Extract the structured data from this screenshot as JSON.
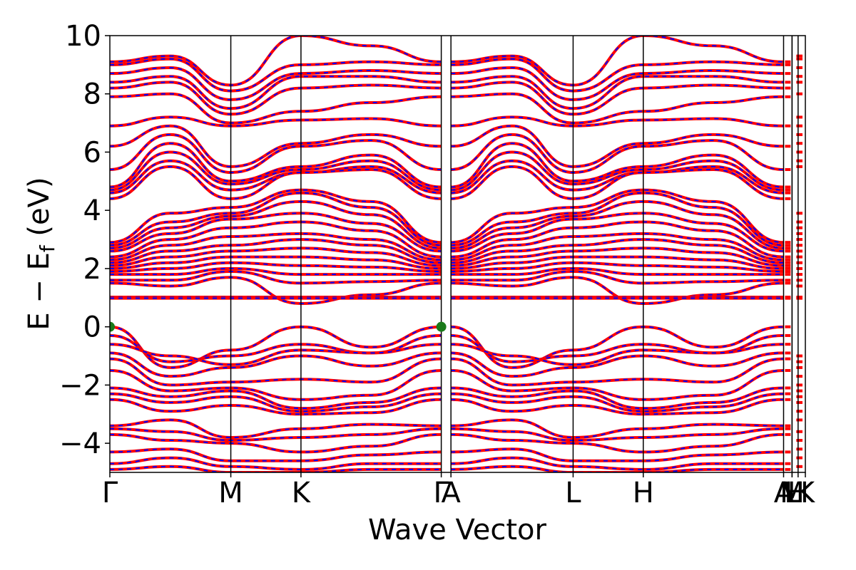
{
  "chart_data": {
    "type": "line",
    "title": "",
    "xlabel": "Wave Vector",
    "ylabel": "E − E",
    "ylabel_subscript": "f",
    "ylabel_unit": " (eV)",
    "ylim": [
      -5,
      10
    ],
    "yticks": [
      {
        "value": -4,
        "label": "−4"
      },
      {
        "value": -2,
        "label": "−2"
      },
      {
        "value": 0,
        "label": "0"
      },
      {
        "value": 2,
        "label": "2"
      },
      {
        "value": 4,
        "label": "4"
      },
      {
        "value": 6,
        "label": "6"
      },
      {
        "value": 8,
        "label": "8"
      },
      {
        "value": 10,
        "label": "10"
      }
    ],
    "xlim": [
      0,
      5.75
    ],
    "high_symmetry_points": [
      {
        "label": "Γ",
        "x": 0.0
      },
      {
        "label": "M",
        "x": 1.0
      },
      {
        "label": "K",
        "x": 1.58
      },
      {
        "label": "Γ",
        "x": 2.74
      },
      {
        "label": "A",
        "x": 2.82
      },
      {
        "label": "L",
        "x": 3.83
      },
      {
        "label": "H",
        "x": 4.41
      },
      {
        "label": "A",
        "x": 5.57
      },
      {
        "label": "L",
        "x": 5.64
      },
      {
        "label": "M",
        "x": 5.64
      },
      {
        "label": "H",
        "x": 5.69
      },
      {
        "label": "K",
        "x": 5.75
      }
    ],
    "segments": [
      [
        0.0,
        1.0
      ],
      [
        1.0,
        1.58
      ],
      [
        1.58,
        2.74
      ],
      [
        2.82,
        3.83
      ],
      [
        3.83,
        4.41
      ],
      [
        4.41,
        5.57
      ]
    ],
    "series_colors": {
      "primary": "#ff0000",
      "overlay": "#0000ff"
    },
    "vbm_markers": [
      {
        "x": 0.0,
        "y": 0.0
      },
      {
        "x": 2.74,
        "y": 0.0
      }
    ],
    "marker_color": "#1a7a1a",
    "flat_band_energy": 1.0,
    "bands": [
      {
        "gamma": 9.1,
        "M": 8.3,
        "K": 10.0,
        "center": 9.3
      },
      {
        "gamma": 9.0,
        "M": 8.1,
        "K": 9.0,
        "center": 9.2
      },
      {
        "gamma": 8.7,
        "M": 7.8,
        "K": 8.7,
        "center": 8.9
      },
      {
        "gamma": 8.4,
        "M": 7.5,
        "K": 8.6,
        "center": 8.6
      },
      {
        "gamma": 8.2,
        "M": 7.3,
        "K": 8.2,
        "center": 8.4
      },
      {
        "gamma": 7.9,
        "M": 7.0,
        "K": 7.4,
        "center": 8.0
      },
      {
        "gamma": 6.9,
        "M": 6.9,
        "K": 7.1,
        "center": 7.2
      },
      {
        "gamma": 6.2,
        "M": 5.5,
        "K": 6.3,
        "center": 6.9
      },
      {
        "gamma": 5.4,
        "M": 5.3,
        "K": 6.2,
        "center": 6.6
      },
      {
        "gamma": 4.8,
        "M": 5.0,
        "K": 5.5,
        "center": 6.3
      },
      {
        "gamma": 4.7,
        "M": 4.9,
        "K": 5.4,
        "center": 6.0
      },
      {
        "gamma": 4.6,
        "M": 4.7,
        "K": 5.3,
        "center": 5.7
      },
      {
        "gamma": 4.4,
        "M": 4.4,
        "K": 5.3,
        "center": 5.5
      },
      {
        "gamma": 2.9,
        "M": 4.1,
        "K": 4.7,
        "center": 3.9
      },
      {
        "gamma": 2.8,
        "M": 3.9,
        "K": 4.6,
        "center": 3.6
      },
      {
        "gamma": 2.7,
        "M": 3.8,
        "K": 4.3,
        "center": 3.4
      },
      {
        "gamma": 2.6,
        "M": 3.7,
        "K": 3.9,
        "center": 3.2
      },
      {
        "gamma": 2.4,
        "M": 3.4,
        "K": 3.6,
        "center": 3.0
      },
      {
        "gamma": 2.3,
        "M": 3.1,
        "K": 3.2,
        "center": 2.8
      },
      {
        "gamma": 2.2,
        "M": 2.8,
        "K": 3.0,
        "center": 2.6
      },
      {
        "gamma": 2.1,
        "M": 2.6,
        "K": 2.7,
        "center": 2.4
      },
      {
        "gamma": 2.0,
        "M": 2.4,
        "K": 2.4,
        "center": 2.2
      },
      {
        "gamma": 1.9,
        "M": 2.2,
        "K": 2.1,
        "center": 2.0
      },
      {
        "gamma": 1.8,
        "M": 2.0,
        "K": 1.8,
        "center": 1.8
      },
      {
        "gamma": 1.6,
        "M": 1.9,
        "K": 1.5,
        "center": 1.6
      },
      {
        "gamma": 1.5,
        "M": 1.7,
        "K": 0.8,
        "center": 1.4
      },
      {
        "gamma": 1.02,
        "M": 1.02,
        "K": 1.02,
        "center": 1.02
      },
      {
        "gamma": 0.98,
        "M": 0.98,
        "K": 0.98,
        "center": 0.98
      },
      {
        "gamma": 0.0,
        "M": -0.8,
        "K": 0.0,
        "center": -1.4
      },
      {
        "gamma": -0.3,
        "M": -1.0,
        "K": -0.6,
        "center": -1.2
      },
      {
        "gamma": -0.6,
        "M": -1.3,
        "K": -0.8,
        "center": -1.0
      },
      {
        "gamma": -0.9,
        "M": -1.4,
        "K": -1.0,
        "center": -1.7
      },
      {
        "gamma": -1.1,
        "M": -1.9,
        "K": -1.8,
        "center": -2.0
      },
      {
        "gamma": -1.5,
        "M": -2.1,
        "K": -2.5,
        "center": -2.2
      },
      {
        "gamma": -2.1,
        "M": -2.2,
        "K": -2.8,
        "center": -2.4
      },
      {
        "gamma": -2.3,
        "M": -2.4,
        "K": -2.9,
        "center": -2.6
      },
      {
        "gamma": -2.5,
        "M": -2.7,
        "K": -3.0,
        "center": -2.9
      },
      {
        "gamma": -3.4,
        "M": -3.8,
        "K": -3.5,
        "center": -3.2
      },
      {
        "gamma": -3.5,
        "M": -3.9,
        "K": -3.8,
        "center": -3.6
      },
      {
        "gamma": -3.7,
        "M": -4.0,
        "K": -4.3,
        "center": -3.9
      },
      {
        "gamma": -4.3,
        "M": -4.6,
        "K": -4.6,
        "center": -4.2
      },
      {
        "gamma": -4.7,
        "M": -4.8,
        "K": -4.9,
        "center": -4.5
      },
      {
        "gamma": -4.9,
        "M": -5.0,
        "K": -5.0,
        "center": -4.8
      }
    ]
  }
}
